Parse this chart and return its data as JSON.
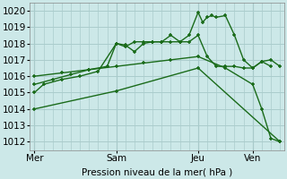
{
  "bg_color": "#cce8e8",
  "grid_color": "#aacccc",
  "line_color": "#1a6b1a",
  "xlabel": "Pression niveau de la mer( hPa )",
  "ylim": [
    1011.5,
    1020.5
  ],
  "yticks": [
    1012,
    1013,
    1014,
    1015,
    1016,
    1017,
    1018,
    1019,
    1020
  ],
  "xtick_labels": [
    "Mer",
    "Sam",
    "Jeu",
    "Ven"
  ],
  "xtick_positions": [
    0,
    9,
    18,
    24
  ],
  "vline_positions": [
    0,
    9,
    18,
    24
  ],
  "lines": [
    {
      "x": [
        0,
        1,
        3,
        5,
        7,
        9,
        10,
        11,
        12,
        13,
        14,
        15,
        16,
        17,
        18,
        18.5,
        19,
        19.5,
        20,
        21,
        22,
        23,
        24,
        25,
        26,
        27
      ],
      "y": [
        1015.0,
        1015.5,
        1015.8,
        1016.0,
        1016.3,
        1018.0,
        1017.9,
        1017.5,
        1018.0,
        1018.1,
        1018.1,
        1018.5,
        1018.1,
        1018.5,
        1019.9,
        1019.3,
        1019.6,
        1019.7,
        1019.6,
        1019.7,
        1018.5,
        1017.0,
        1016.5,
        1016.9,
        1017.0,
        1016.6
      ]
    },
    {
      "x": [
        0,
        2,
        4,
        6,
        8,
        9,
        10,
        11,
        12,
        13,
        14,
        15,
        16,
        17,
        18,
        19,
        20,
        21,
        22,
        23,
        24,
        25,
        26
      ],
      "y": [
        1015.5,
        1015.8,
        1016.1,
        1016.4,
        1016.6,
        1018.0,
        1017.8,
        1018.1,
        1018.1,
        1018.1,
        1018.1,
        1018.1,
        1018.1,
        1018.1,
        1018.5,
        1017.2,
        1016.6,
        1016.6,
        1016.6,
        1016.5,
        1016.5,
        1016.9,
        1016.6
      ]
    },
    {
      "x": [
        0,
        3,
        6,
        9,
        12,
        15,
        18,
        21,
        24,
        25,
        26,
        27
      ],
      "y": [
        1016.0,
        1016.2,
        1016.4,
        1016.6,
        1016.8,
        1017.0,
        1017.2,
        1016.5,
        1015.5,
        1014.0,
        1012.2,
        1012.0
      ]
    },
    {
      "x": [
        0,
        9,
        18,
        27
      ],
      "y": [
        1014.0,
        1015.1,
        1016.5,
        1012.0
      ]
    }
  ],
  "font_size": 7.5,
  "marker": "+",
  "markersize": 3.5
}
